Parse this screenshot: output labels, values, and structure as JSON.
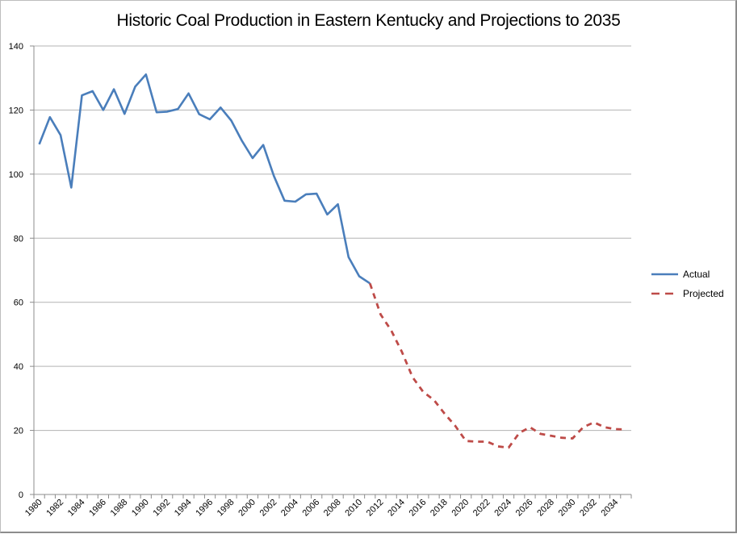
{
  "chart_data": {
    "type": "line",
    "title": "Historic Coal Production in Eastern Kentucky and Projections to 2035",
    "xlabel": "",
    "ylabel": "",
    "ylim": [
      0,
      140
    ],
    "y_ticks": [
      0,
      20,
      40,
      60,
      80,
      100,
      120,
      140
    ],
    "grid": "horizontal",
    "legend_position": "right",
    "categories": [
      1980,
      1981,
      1982,
      1983,
      1984,
      1985,
      1986,
      1987,
      1988,
      1989,
      1990,
      1991,
      1992,
      1993,
      1994,
      1995,
      1996,
      1997,
      1998,
      1999,
      2000,
      2001,
      2002,
      2003,
      2004,
      2005,
      2006,
      2007,
      2008,
      2009,
      2010,
      2011,
      2012,
      2013,
      2014,
      2015,
      2016,
      2017,
      2018,
      2019,
      2020,
      2021,
      2022,
      2023,
      2024,
      2025,
      2026,
      2027,
      2028,
      2029,
      2030,
      2031,
      2032,
      2033,
      2034,
      2035
    ],
    "x_tick_labels": [
      "1980",
      "1982",
      "1984",
      "1986",
      "1988",
      "1990",
      "1992",
      "1994",
      "1996",
      "1998",
      "2000",
      "2002",
      "2004",
      "2006",
      "2008",
      "2010",
      "2012",
      "2014",
      "2016",
      "2018",
      "2020",
      "2022",
      "2024",
      "2026",
      "2028",
      "2030",
      "2032",
      "2034"
    ],
    "series": [
      {
        "name": "Actual",
        "color": "#4a7ebb",
        "style": "solid",
        "values": [
          109.3,
          117.8,
          112.2,
          95.8,
          124.6,
          125.9,
          120.0,
          126.5,
          118.8,
          127.3,
          131.1,
          119.3,
          119.5,
          120.3,
          125.2,
          118.7,
          117.1,
          120.8,
          116.7,
          110.4,
          105.0,
          109.1,
          99.4,
          91.7,
          91.4,
          93.7,
          93.9,
          87.4,
          90.6,
          74.1,
          68.1,
          65.9,
          null,
          null,
          null,
          null,
          null,
          null,
          null,
          null,
          null,
          null,
          null,
          null,
          null,
          null,
          null,
          null,
          null,
          null,
          null,
          null,
          null,
          null,
          null,
          null
        ]
      },
      {
        "name": "Projected",
        "color": "#be4b48",
        "style": "dashed",
        "values": [
          null,
          null,
          null,
          null,
          null,
          null,
          null,
          null,
          null,
          null,
          null,
          null,
          null,
          null,
          null,
          null,
          null,
          null,
          null,
          null,
          null,
          null,
          null,
          null,
          null,
          null,
          null,
          null,
          null,
          null,
          null,
          65.9,
          56.2,
          51.2,
          44.5,
          36.6,
          32.0,
          29.5,
          25.2,
          21.4,
          16.7,
          16.5,
          16.5,
          15.0,
          14.6,
          19.2,
          21.0,
          18.9,
          18.3,
          17.7,
          17.5,
          21.0,
          22.5,
          21.0,
          20.4,
          20.3
        ]
      }
    ]
  }
}
